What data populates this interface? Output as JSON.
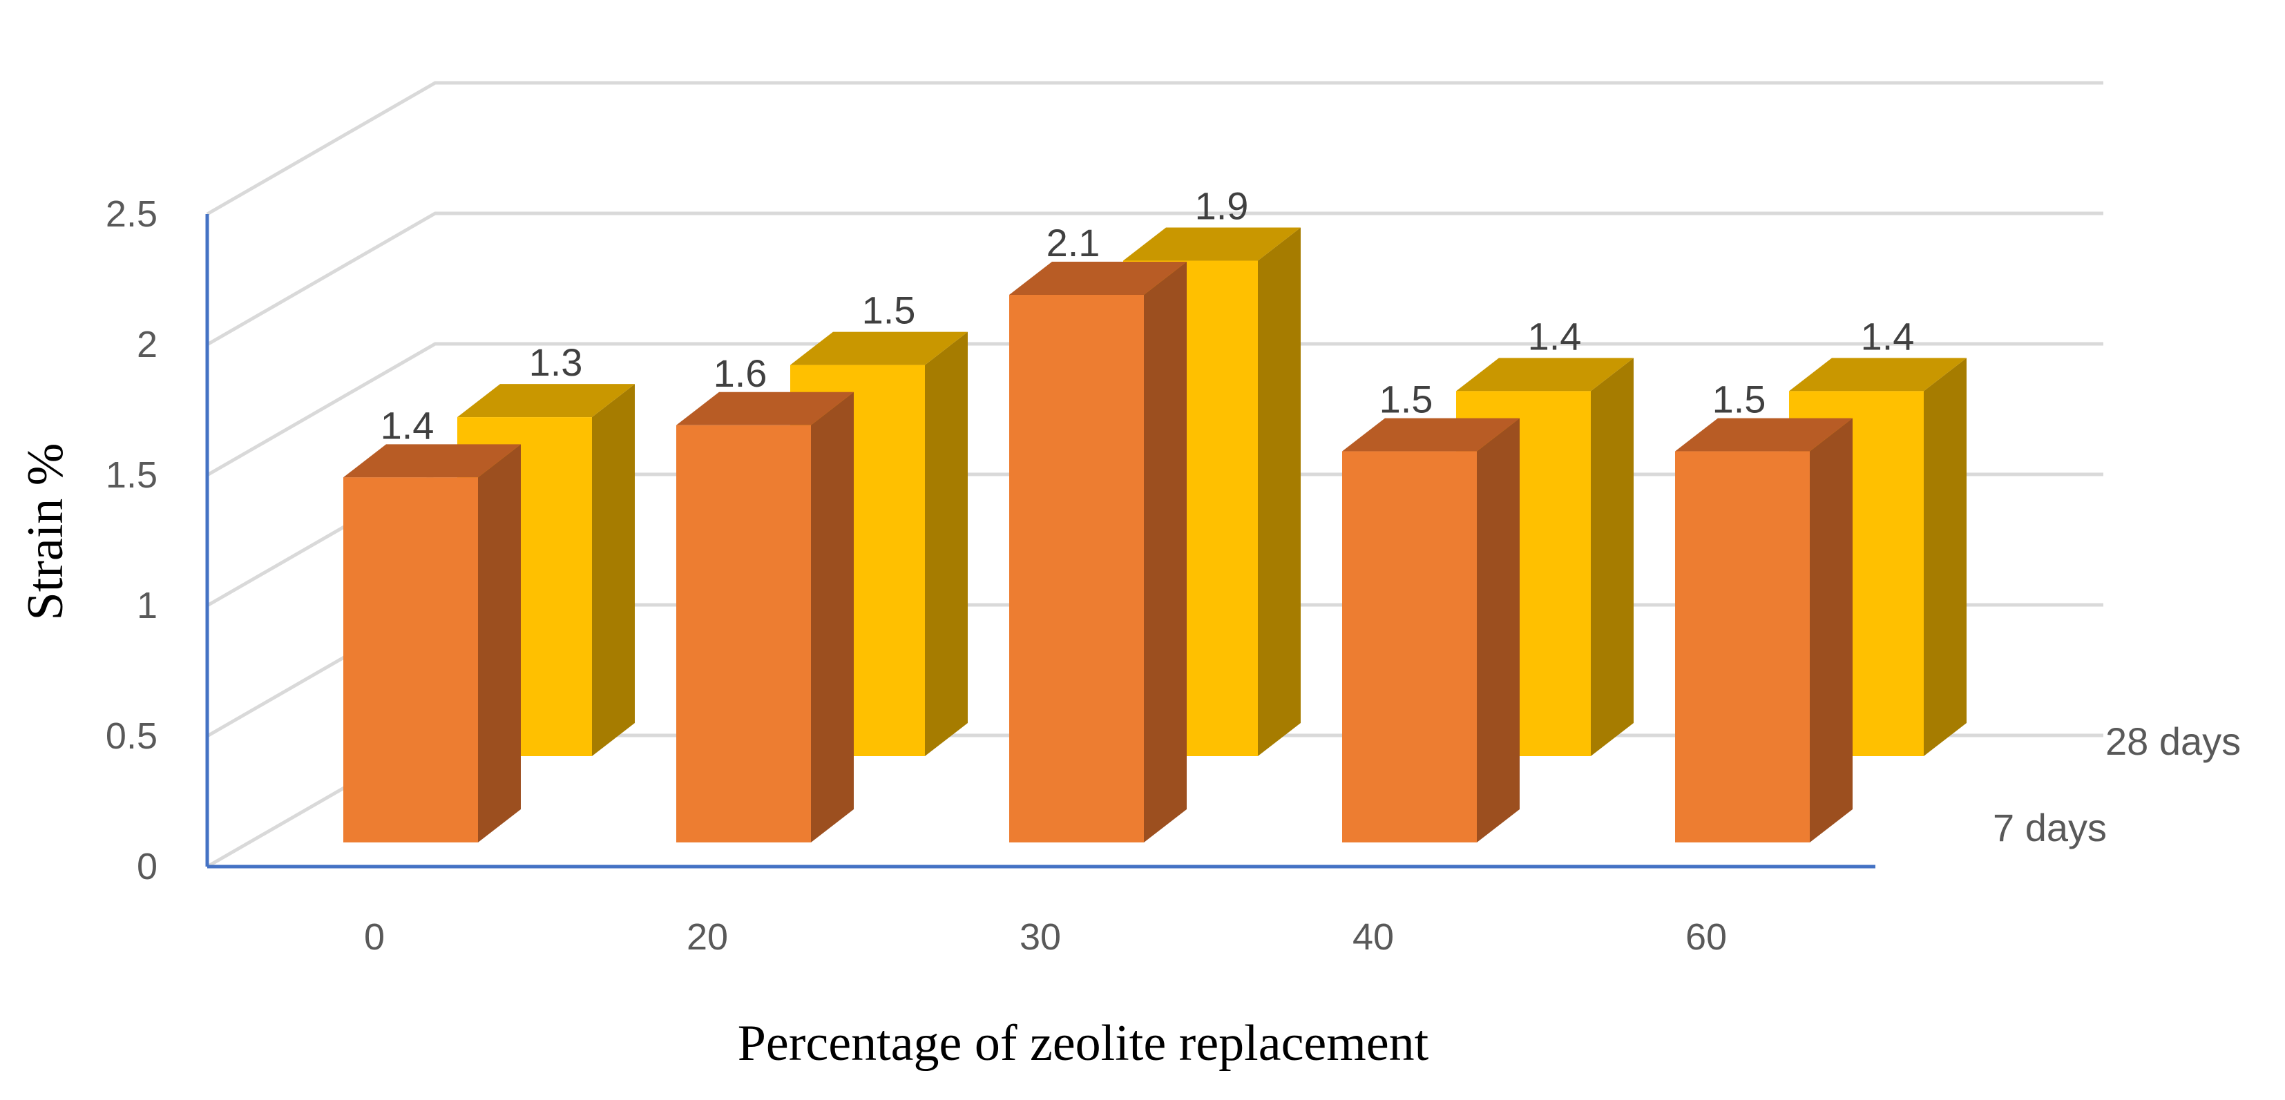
{
  "chart_data": {
    "type": "bar",
    "subtype": "3d-clustered-depth",
    "categories": [
      "0",
      "20",
      "30",
      "40",
      "60"
    ],
    "series": [
      {
        "name": "7 days",
        "values": [
          1.4,
          1.6,
          2.1,
          1.5,
          1.5
        ],
        "color_front": "#ED7D31",
        "color_side": "#9C4F1F",
        "color_top": "#B85C25"
      },
      {
        "name": "28 days",
        "values": [
          1.3,
          1.5,
          1.9,
          1.4,
          1.4
        ],
        "color_front": "#FFC000",
        "color_side": "#A67C00",
        "color_top": "#C99700"
      }
    ],
    "y_ticks": [
      "0",
      "0.5",
      "1",
      "1.5",
      "2",
      "2.5"
    ],
    "ylim": [
      0,
      2.5
    ],
    "ylabel": "Strain %",
    "xlabel": "Percentage of zeolite replacement",
    "grid": true,
    "axis_color": "#4472C4",
    "grid_color": "#D9D9D9"
  }
}
